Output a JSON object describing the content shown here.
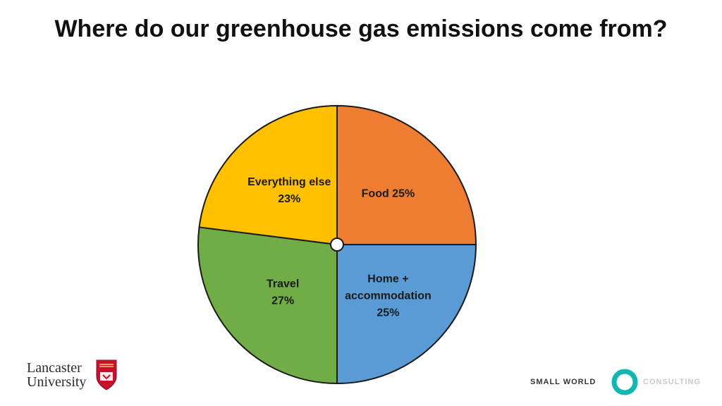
{
  "chart_data": {
    "type": "pie",
    "title": "Where do our greenhouse gas emissions come from?",
    "start_angle_deg": 0,
    "direction": "clockwise",
    "slices": [
      {
        "label": "Food 25%",
        "lines": [
          "Food 25%"
        ],
        "value": 25,
        "color": "#ED7D31"
      },
      {
        "label": "Home + accommodation 25%",
        "lines": [
          "Home +",
          "accommodation",
          "25%"
        ],
        "value": 25,
        "color": "#5B9BD5"
      },
      {
        "label": "Travel 27%",
        "lines": [
          "Travel",
          "27%"
        ],
        "value": 27,
        "color": "#70AD47"
      },
      {
        "label": "Everything else 23%",
        "lines": [
          "Everything else",
          "23%"
        ],
        "value": 23,
        "color": "#FFC000"
      }
    ]
  },
  "logos": {
    "lancaster": {
      "line1": "Lancaster",
      "line2": "University",
      "crest_color": "#C8102E"
    },
    "small_world_consulting": {
      "left_text": "SMALL WORLD",
      "right_text": "CONSULTING",
      "ring_color": "#12B6B0"
    }
  }
}
